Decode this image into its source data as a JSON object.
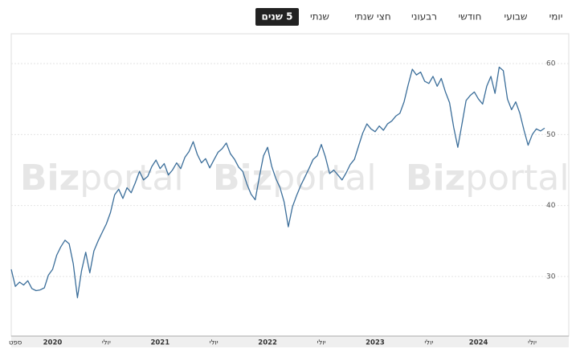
{
  "tabs": [
    {
      "label": "יומי"
    },
    {
      "label": "שבועי"
    },
    {
      "label": "חודשי"
    },
    {
      "label": "רבעוני"
    },
    {
      "label": "חצי שנתי"
    },
    {
      "label": "שנתי"
    },
    {
      "label": "5 שנים",
      "active": true
    }
  ],
  "watermark": {
    "bold": "Biz",
    "light": "portal"
  },
  "chart_data": {
    "type": "line",
    "color": "#3b6e9a",
    "grid": true,
    "ylim": [
      21.6,
      64.2
    ],
    "yticks": [
      30,
      40,
      50,
      60
    ],
    "categories": [
      null,
      "ספט",
      null,
      null,
      null,
      null,
      null,
      null,
      null,
      null,
      "2020",
      null,
      null,
      null,
      null,
      null,
      null,
      null,
      null,
      null,
      null,
      null,
      null,
      "יולי",
      null,
      null,
      null,
      null,
      null,
      null,
      null,
      null,
      null,
      null,
      null,
      null,
      "2021",
      null,
      null,
      null,
      null,
      null,
      null,
      null,
      null,
      null,
      null,
      null,
      null,
      "יולי",
      null,
      null,
      null,
      null,
      null,
      null,
      null,
      null,
      null,
      null,
      null,
      null,
      "2022",
      null,
      null,
      null,
      null,
      null,
      null,
      null,
      null,
      null,
      null,
      null,
      null,
      "יולי",
      null,
      null,
      null,
      null,
      null,
      null,
      null,
      null,
      null,
      null,
      null,
      null,
      "2023",
      null,
      null,
      null,
      null,
      null,
      null,
      null,
      null,
      null,
      null,
      null,
      null,
      "יולי",
      null,
      null,
      null,
      null,
      null,
      null,
      null,
      null,
      null,
      null,
      null,
      "2024",
      null,
      null,
      null,
      null,
      null,
      null,
      null,
      null,
      null,
      null,
      null,
      null,
      "יולי",
      null,
      null,
      null
    ],
    "values": [
      31.0,
      28.6,
      29.2,
      28.8,
      29.4,
      28.3,
      28.0,
      28.1,
      28.4,
      30.2,
      31.0,
      33.0,
      34.2,
      35.1,
      34.6,
      31.8,
      27.0,
      30.8,
      33.4,
      30.5,
      33.6,
      35.0,
      36.2,
      37.4,
      39.0,
      41.5,
      42.3,
      41.0,
      42.5,
      41.8,
      43.2,
      44.8,
      43.6,
      44.1,
      45.5,
      46.4,
      45.2,
      45.9,
      44.3,
      45.0,
      46.0,
      45.2,
      46.8,
      47.6,
      49.0,
      47.2,
      46.0,
      46.6,
      45.3,
      46.4,
      47.5,
      48.0,
      48.8,
      47.3,
      46.5,
      45.4,
      44.8,
      43.0,
      41.6,
      40.8,
      44.0,
      47.0,
      48.2,
      45.5,
      43.8,
      42.5,
      40.5,
      37.0,
      39.8,
      41.4,
      42.8,
      44.0,
      45.2,
      46.5,
      47.0,
      48.6,
      46.8,
      44.5,
      45.0,
      44.3,
      43.6,
      44.6,
      45.8,
      46.5,
      48.4,
      50.2,
      51.5,
      50.8,
      50.4,
      51.2,
      50.6,
      51.5,
      51.9,
      52.6,
      53.0,
      54.6,
      57.0,
      59.2,
      58.4,
      58.8,
      57.5,
      57.2,
      58.2,
      56.8,
      57.9,
      56.0,
      54.5,
      51.0,
      48.2,
      51.5,
      54.8,
      55.5,
      56.0,
      55.0,
      54.3,
      56.8,
      58.2,
      55.8,
      59.5,
      59.0,
      55.0,
      53.5,
      54.6,
      53.0,
      50.6,
      48.5,
      50.0,
      50.8,
      50.5,
      50.9
    ]
  }
}
